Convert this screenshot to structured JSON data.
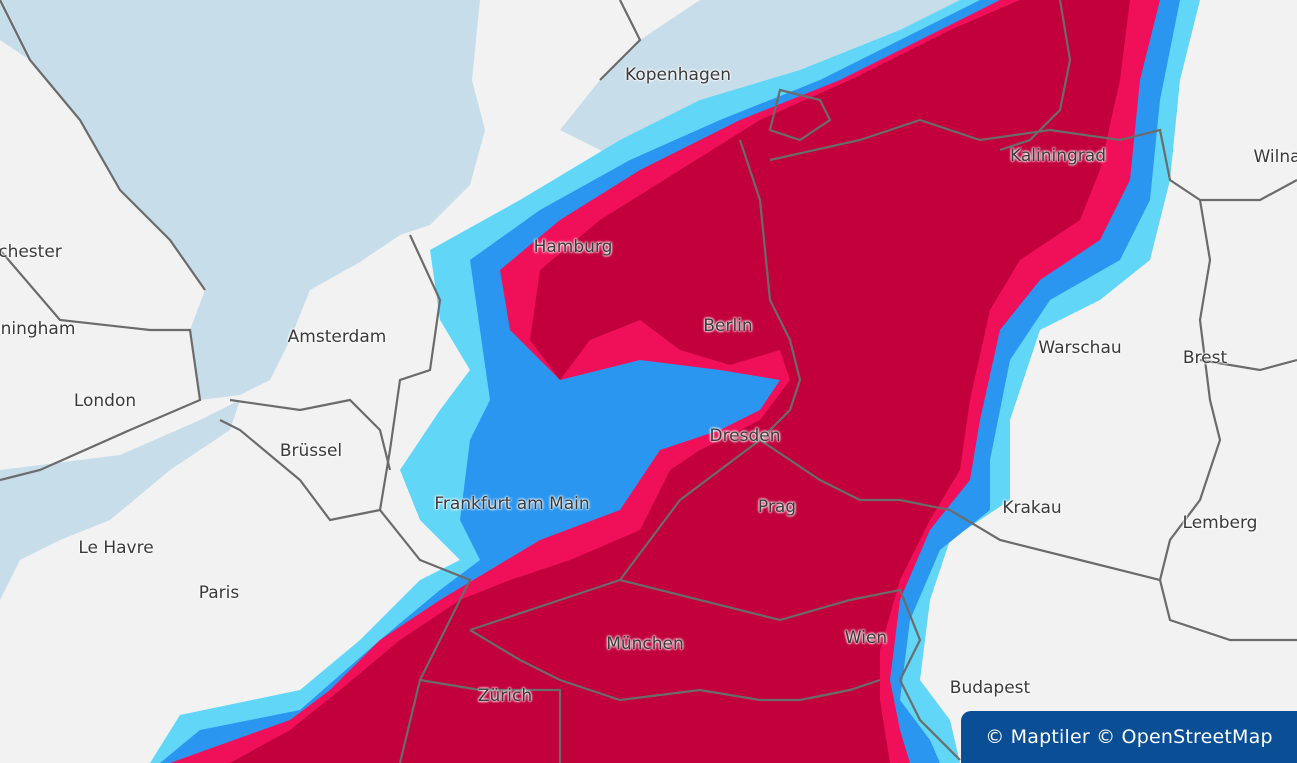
{
  "colors": {
    "land": "#f2f2f2",
    "water": "#c7dde9",
    "border": "#6b6b6b",
    "precip_light": "#62d6f7",
    "precip_moderate": "#2a96f0",
    "precip_heavy": "#f0105a",
    "precip_extreme": "#c2003c",
    "attribution_bg": "#0a4f96"
  },
  "cities": [
    {
      "id": "kopenhagen",
      "label": "Kopenhagen"
    },
    {
      "id": "kaliningrad",
      "label": "Kaliningrad"
    },
    {
      "id": "wilna",
      "label": "Wilna"
    },
    {
      "id": "manchester",
      "label": "chester"
    },
    {
      "id": "hamburg",
      "label": "Hamburg"
    },
    {
      "id": "birmingham",
      "label": "ningham"
    },
    {
      "id": "amsterdam",
      "label": "Amsterdam"
    },
    {
      "id": "berlin",
      "label": "Berlin"
    },
    {
      "id": "warschau",
      "label": "Warschau"
    },
    {
      "id": "brest",
      "label": "Brest"
    },
    {
      "id": "london",
      "label": "London"
    },
    {
      "id": "bruessel",
      "label": "Brüssel"
    },
    {
      "id": "dresden",
      "label": "Dresden"
    },
    {
      "id": "frankfurt",
      "label": "Frankfurt am Main"
    },
    {
      "id": "prag",
      "label": "Prag"
    },
    {
      "id": "krakau",
      "label": "Krakau"
    },
    {
      "id": "lemberg",
      "label": "Lemberg"
    },
    {
      "id": "lehavre",
      "label": "Le Havre"
    },
    {
      "id": "paris",
      "label": "Paris"
    },
    {
      "id": "muenchen",
      "label": "München"
    },
    {
      "id": "wien",
      "label": "Wien"
    },
    {
      "id": "budapest",
      "label": "Budapest"
    },
    {
      "id": "zuerich",
      "label": "Zürich"
    }
  ],
  "attribution": "© Maptiler © OpenStreetMap"
}
